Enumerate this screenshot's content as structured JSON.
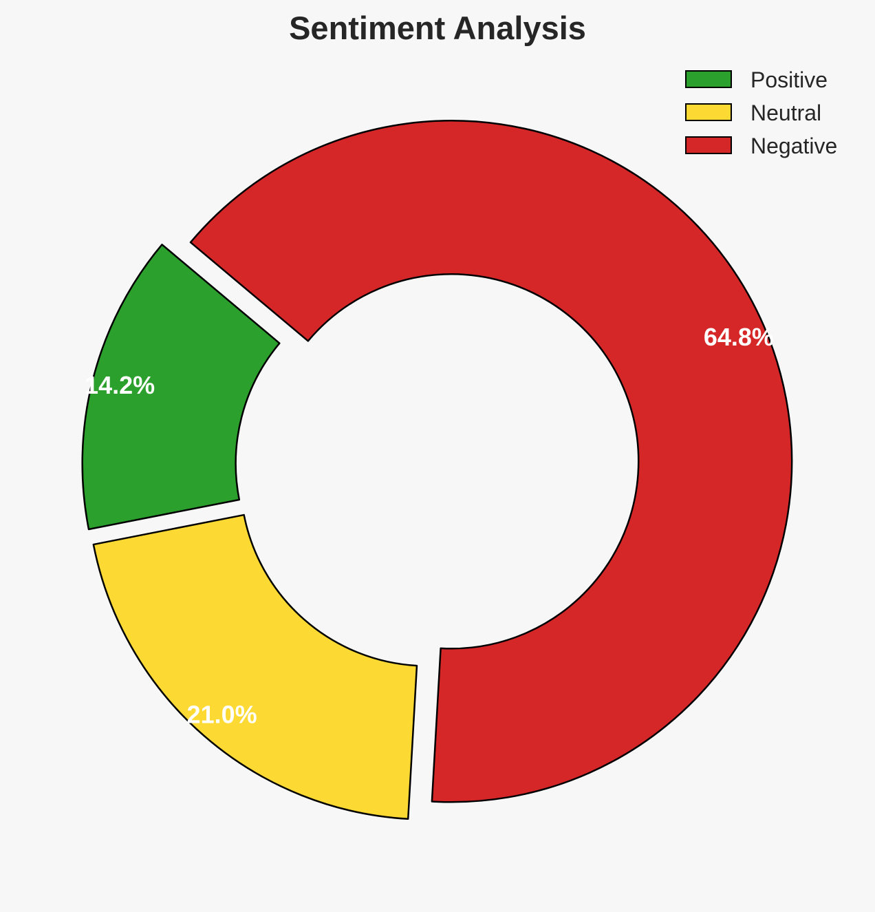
{
  "chart_data": {
    "type": "pie",
    "donut": true,
    "title": "Sentiment Analysis",
    "slices": [
      {
        "label": "Positive",
        "value": 14.2,
        "display": "14.2%",
        "color": "#2ca02c"
      },
      {
        "label": "Neutral",
        "value": 21.0,
        "display": "21.0%",
        "color": "#fdda33"
      },
      {
        "label": "Negative",
        "value": 64.8,
        "display": "64.8%",
        "color": "#d62728"
      }
    ],
    "exploded": true,
    "legend_position": "top-right",
    "edge_color": "#000000",
    "label_color": "#ffffff"
  }
}
